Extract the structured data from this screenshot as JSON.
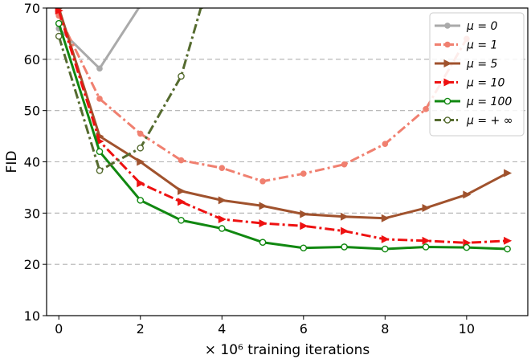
{
  "chart_data": {
    "type": "line",
    "title": "",
    "xlabel": "× 10⁶ training iterations",
    "ylabel": "FID",
    "xlim": [
      -0.3,
      11.5
    ],
    "ylim": [
      10,
      70
    ],
    "xticks": [
      0,
      2,
      4,
      6,
      8,
      10
    ],
    "yticks": [
      10,
      20,
      30,
      40,
      50,
      60,
      70
    ],
    "grid": "horizontal dashed",
    "legend_position": "top-right",
    "series": [
      {
        "name": "μ = 0",
        "color": "#aaaaaa",
        "line_style": "solid",
        "marker": "circle-filled",
        "x": [
          0,
          1,
          2
        ],
        "y": [
          66.0,
          58.2,
          70.5
        ]
      },
      {
        "name": "μ = 1",
        "color": "#f08070",
        "line_style": "dashdot",
        "marker": "circle-filled",
        "x": [
          0,
          1,
          2,
          3,
          4,
          5,
          6,
          7,
          8,
          9,
          10
        ],
        "y": [
          68.5,
          52.3,
          45.5,
          40.3,
          38.8,
          36.2,
          37.7,
          39.5,
          43.5,
          50.3,
          64.0
        ]
      },
      {
        "name": "μ = 5",
        "color": "#a0522d",
        "line_style": "solid",
        "marker": "triangle-right",
        "x": [
          0,
          1,
          2,
          3,
          4,
          5,
          6,
          7,
          8,
          9,
          10,
          11
        ],
        "y": [
          70.0,
          45.0,
          40.0,
          34.3,
          32.5,
          31.4,
          29.8,
          29.3,
          29.0,
          31.0,
          33.6,
          37.8
        ]
      },
      {
        "name": "μ = 10",
        "color": "#ee1111",
        "line_style": "dashdot",
        "marker": "triangle-right",
        "x": [
          0,
          1,
          2,
          3,
          4,
          5,
          6,
          7,
          8,
          9,
          10,
          11
        ],
        "y": [
          69.5,
          44.0,
          35.8,
          32.2,
          28.8,
          28.0,
          27.5,
          26.5,
          24.9,
          24.6,
          24.2,
          24.6
        ]
      },
      {
        "name": "μ = 100",
        "color": "#118811",
        "line_style": "solid",
        "marker": "circle-open",
        "x": [
          0,
          1,
          2,
          3,
          4,
          5,
          6,
          7,
          8,
          9,
          10,
          11
        ],
        "y": [
          67.0,
          42.0,
          32.5,
          28.6,
          27.0,
          24.3,
          23.2,
          23.4,
          23.0,
          23.4,
          23.3,
          23.0
        ]
      },
      {
        "name": "μ = + ∞",
        "color": "#556b2f",
        "line_style": "dashdot",
        "marker": "circle-open",
        "x": [
          0,
          1,
          2,
          3,
          3.5
        ],
        "y": [
          64.5,
          38.3,
          42.7,
          56.7,
          70.5
        ]
      }
    ]
  }
}
